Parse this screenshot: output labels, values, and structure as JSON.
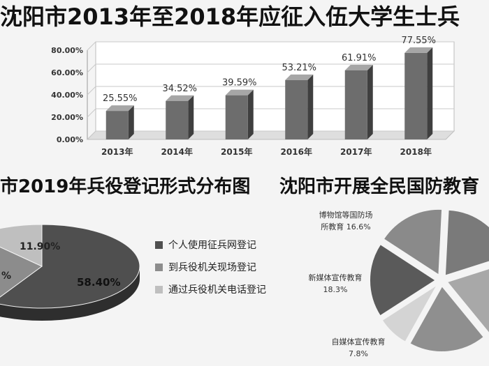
{
  "titles": {
    "main": "沈阳市2013年至2018年应征入伍大学生士兵",
    "left": "市2019年兵役登记形式分布图",
    "right": "沈阳市开展全民国防教育"
  },
  "chart_data": [
    {
      "type": "bar",
      "categories": [
        "2013年",
        "2014年",
        "2015年",
        "2016年",
        "2017年",
        "2018年"
      ],
      "values": [
        25.55,
        34.52,
        39.59,
        53.21,
        61.91,
        77.55
      ],
      "value_labels": [
        "25.55%",
        "34.52%",
        "39.59%",
        "53.21%",
        "61.91%",
        "77.55%"
      ],
      "y_ticks": [
        "0.00%",
        "20.00%",
        "40.00%",
        "60.00%",
        "80.00%"
      ],
      "ylim": [
        0,
        80
      ],
      "grid": true
    },
    {
      "type": "pie",
      "slices": [
        {
          "name": "个人使用征兵网登记",
          "value": 58.4,
          "label": "58.40%",
          "color": "#4f4f4f"
        },
        {
          "name": "到兵役机关现场登记",
          "value": 29.7,
          "label": "%",
          "color": "#8c8c8c"
        },
        {
          "name": "通过兵役机关电话登记",
          "value": 11.9,
          "label": "11.90%",
          "color": "#bfbfbf"
        }
      ],
      "legend": "right"
    },
    {
      "type": "pie",
      "slices": [
        {
          "name": "博物馆等国防场所教育",
          "line1": "博物馆等国防场",
          "line2": "所教育 16.6%",
          "value": 16.6,
          "color": "#8a8a8a"
        },
        {
          "name": "新媒体宣传教育",
          "line1": "新媒体宣传教育",
          "line2": "18.3%",
          "value": 18.3,
          "color": "#5a5a5a"
        },
        {
          "name": "自媒体宣传教育",
          "line1": "自媒体宣传教育",
          "line2": "7.8%",
          "value": 7.8,
          "color": "#d4d4d4"
        },
        {
          "value": 19.0,
          "color": "#8f8f8f"
        },
        {
          "value": 19.0,
          "color": "#a8a8a8"
        },
        {
          "value": 19.3,
          "color": "#7a7a7a"
        }
      ]
    }
  ]
}
